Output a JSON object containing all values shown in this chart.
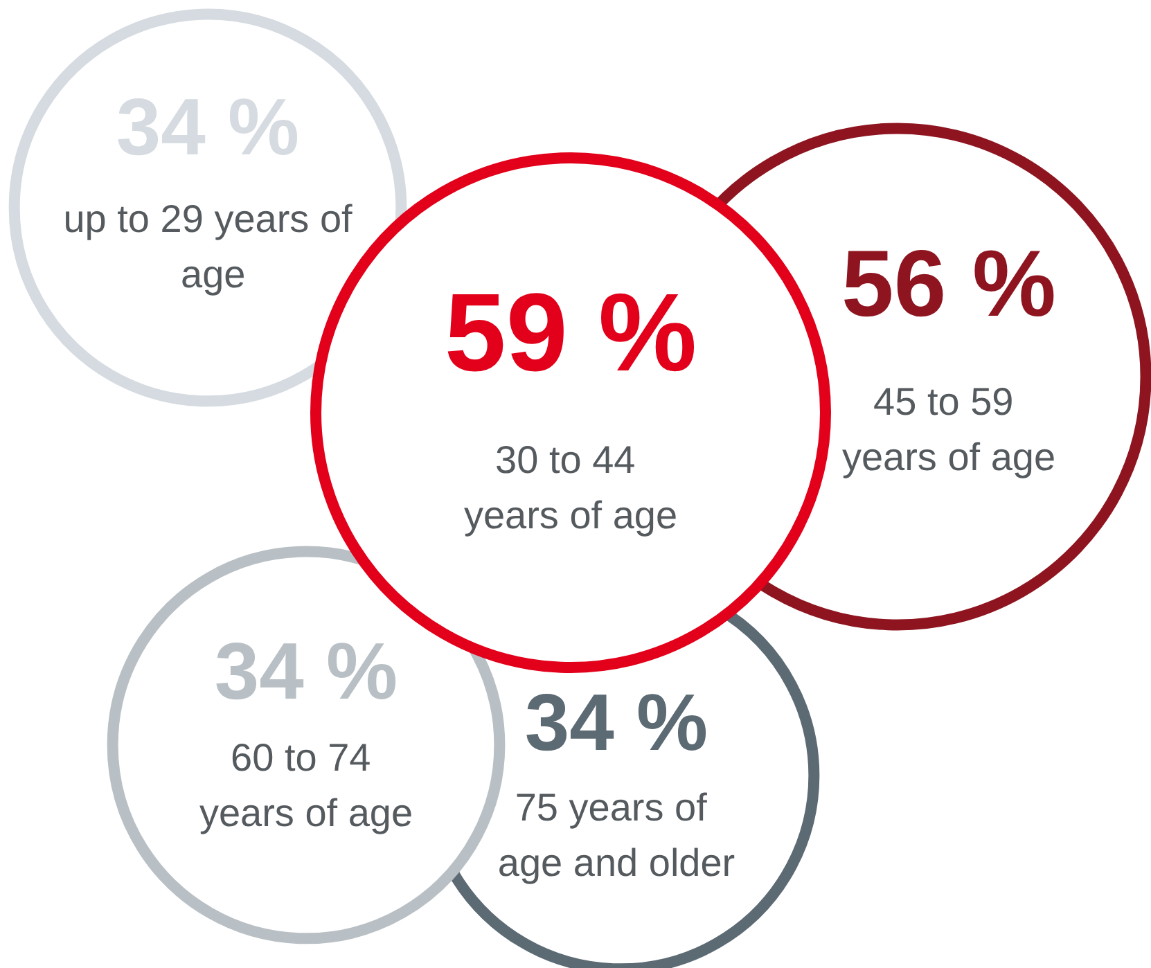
{
  "chart_data": {
    "type": "other",
    "categories": [
      "up to 29 years of age",
      "30 to 44 years of age",
      "45 to 59 years of age",
      "60 to 74 years of age",
      "75 years of age and older"
    ],
    "values": [
      34,
      59,
      56,
      34,
      34
    ],
    "value_labels": [
      "34 %",
      "59 %",
      "56 %",
      "34 %",
      "34 %"
    ],
    "colors": [
      "#d5dbe0",
      "#e2001a",
      "#8e1520",
      "#b9c0c5",
      "#5c6a73"
    ]
  }
}
